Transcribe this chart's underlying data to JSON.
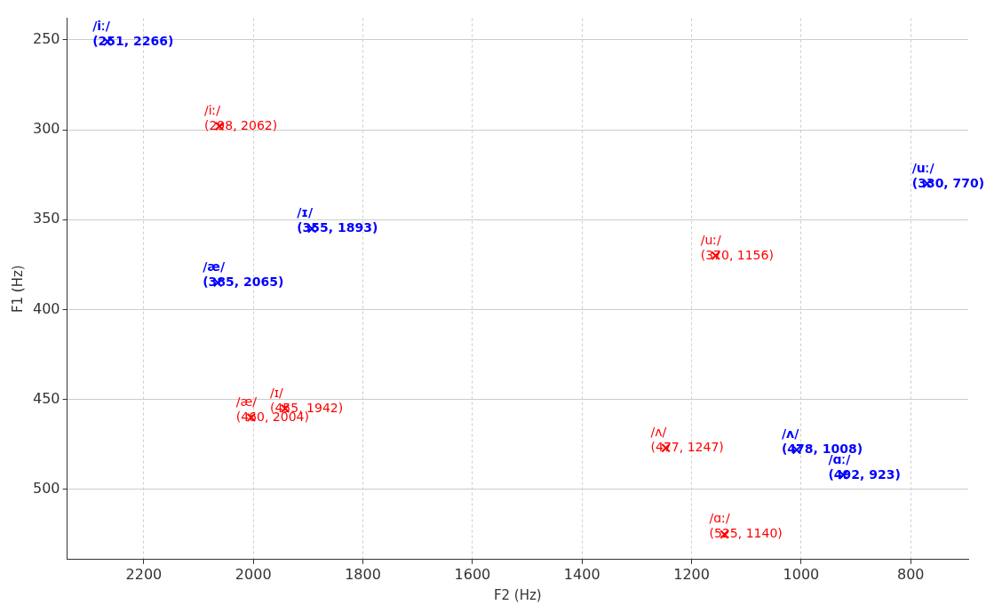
{
  "chart_data": {
    "type": "scatter",
    "xlabel": "F2 (Hz)",
    "ylabel": "F1 (Hz)",
    "xlim": [
      2340,
      695
    ],
    "xticks": [
      2200,
      2000,
      1800,
      1600,
      1400,
      1200,
      1000,
      800
    ],
    "ylim": [
      539,
      238
    ],
    "yticks": [
      250,
      300,
      350,
      400,
      450,
      500
    ],
    "grid": true,
    "legend": false,
    "marker": "cross",
    "series": [
      {
        "color": "#0000ff",
        "x": [
          2266,
          1893,
          2065,
          770,
          1008,
          923
        ],
        "values": [
          251,
          355,
          385,
          330,
          478,
          492
        ]
      },
      {
        "color": "#ff0000",
        "x": [
          2062,
          1156,
          1942,
          2004,
          1247,
          1140
        ],
        "values": [
          298,
          370,
          455,
          460,
          477,
          525
        ]
      }
    ],
    "annotations": [
      {
        "text": "/iː/\n(251, 2266)",
        "x": 2266,
        "y": 251
      },
      {
        "text": "/ɪ/\n(355, 1893)",
        "x": 1893,
        "y": 355
      },
      {
        "text": "/æ/\n(385, 2065)",
        "x": 2065,
        "y": 385
      },
      {
        "text": "/uː/\n(330, 770)",
        "x": 770,
        "y": 330
      },
      {
        "text": "/ʌ/\n(478, 1008)",
        "x": 1008,
        "y": 478
      },
      {
        "text": "/ɑː/\n(492, 923)",
        "x": 923,
        "y": 492
      },
      {
        "text": "/iː/\n(298, 2062)",
        "x": 2062,
        "y": 298
      },
      {
        "text": "/uː/\n(370, 1156)",
        "x": 1156,
        "y": 370
      },
      {
        "text": "/ɪ/\n(455, 1942)",
        "x": 1942,
        "y": 455
      },
      {
        "text": "/æ/\n(460, 2004)",
        "x": 2004,
        "y": 460
      },
      {
        "text": "/ʌ/\n(477, 1247)",
        "x": 1247,
        "y": 477
      },
      {
        "text": "/ɑː/\n(525, 1140)",
        "x": 1140,
        "y": 525
      }
    ]
  }
}
